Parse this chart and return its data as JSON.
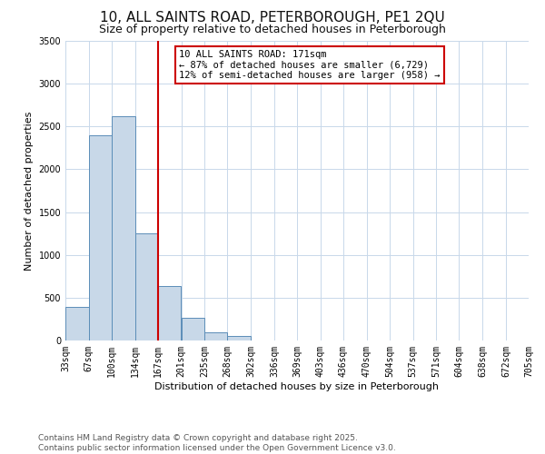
{
  "title": "10, ALL SAINTS ROAD, PETERBOROUGH, PE1 2QU",
  "subtitle": "Size of property relative to detached houses in Peterborough",
  "bar_edges": [
    33,
    67,
    100,
    134,
    167,
    201,
    235,
    268,
    302,
    336,
    369,
    403,
    436,
    470,
    504,
    537,
    571,
    604,
    638,
    672,
    705
  ],
  "bar_heights": [
    390,
    2400,
    2620,
    1250,
    640,
    270,
    100,
    50,
    0,
    0,
    0,
    0,
    0,
    0,
    0,
    0,
    0,
    0,
    0,
    0
  ],
  "bar_color": "#c8d8e8",
  "bar_edge_color": "#5b8db8",
  "vline_color": "#cc0000",
  "vline_x": 167,
  "annotation_title": "10 ALL SAINTS ROAD: 171sqm",
  "annotation_line1": "← 87% of detached houses are smaller (6,729)",
  "annotation_line2": "12% of semi-detached houses are larger (958) →",
  "annotation_box_color": "#ffffff",
  "annotation_box_edge": "#cc0000",
  "xlabel": "Distribution of detached houses by size in Peterborough",
  "ylabel": "Number of detached properties",
  "ylim": [
    0,
    3500
  ],
  "yticks": [
    0,
    500,
    1000,
    1500,
    2000,
    2500,
    3000,
    3500
  ],
  "tick_labels": [
    "33sqm",
    "67sqm",
    "100sqm",
    "134sqm",
    "167sqm",
    "201sqm",
    "235sqm",
    "268sqm",
    "302sqm",
    "336sqm",
    "369sqm",
    "403sqm",
    "436sqm",
    "470sqm",
    "504sqm",
    "537sqm",
    "571sqm",
    "604sqm",
    "638sqm",
    "672sqm",
    "705sqm"
  ],
  "footer_line1": "Contains HM Land Registry data © Crown copyright and database right 2025.",
  "footer_line2": "Contains public sector information licensed under the Open Government Licence v3.0.",
  "bg_color": "#ffffff",
  "grid_color": "#c8d8ea",
  "title_fontsize": 11,
  "subtitle_fontsize": 9,
  "axis_fontsize": 8,
  "tick_fontsize": 7,
  "annot_fontsize": 7.5,
  "footer_fontsize": 6.5
}
